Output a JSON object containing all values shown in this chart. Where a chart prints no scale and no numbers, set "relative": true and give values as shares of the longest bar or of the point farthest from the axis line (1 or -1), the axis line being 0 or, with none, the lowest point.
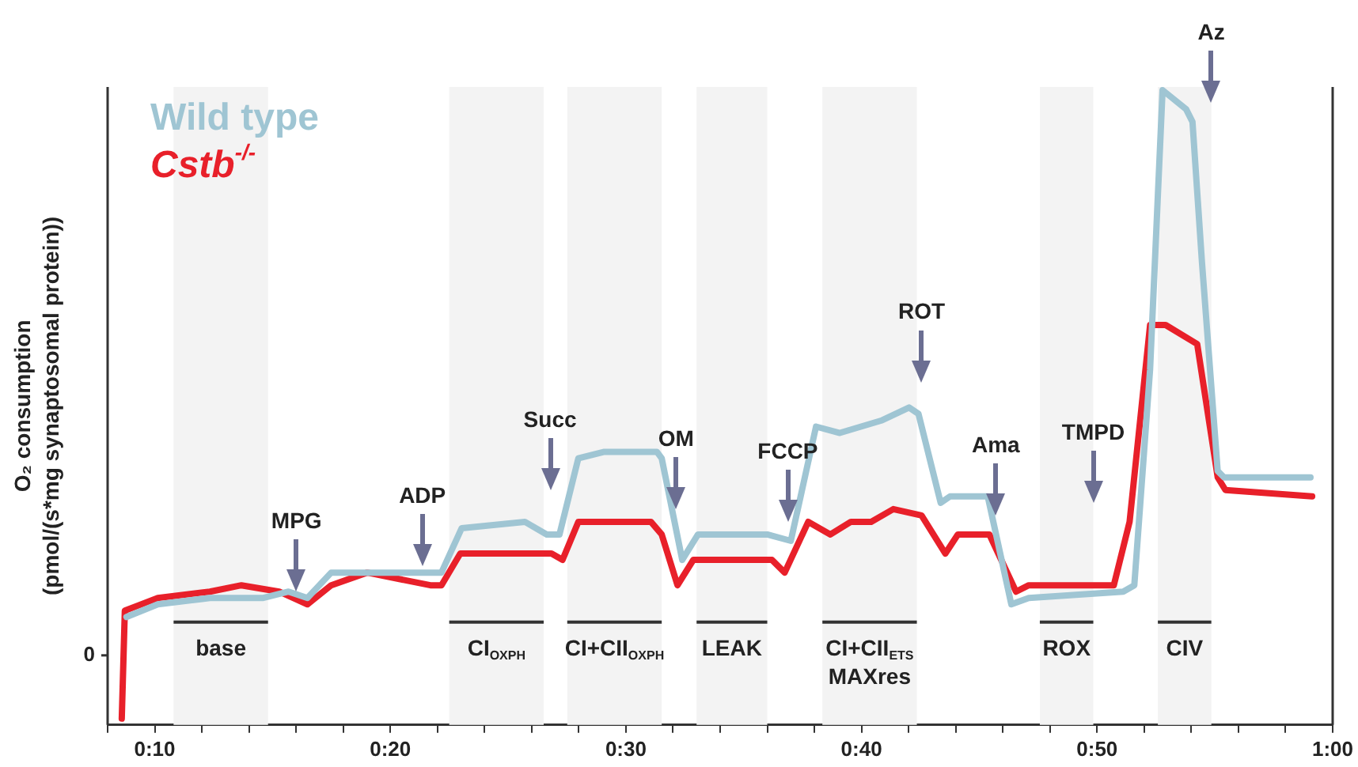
{
  "chart_data": {
    "type": "line",
    "relative": true,
    "ylabel": "O₂ consumption\n(pmol/(s*mg synaptosomal protein))",
    "legend": "top left",
    "marker": "none",
    "line_style": "solid",
    "grid": false,
    "xlim": [
      8,
      60
    ],
    "xticks": [
      {
        "value": 8,
        "label": null
      },
      {
        "value": 10,
        "label": "0:10"
      },
      {
        "value": 12,
        "label": null
      },
      {
        "value": 14,
        "label": null
      },
      {
        "value": 16,
        "label": null
      },
      {
        "value": 18,
        "label": null
      },
      {
        "value": 20,
        "label": "0:20"
      },
      {
        "value": 22,
        "label": null
      },
      {
        "value": 24,
        "label": null
      },
      {
        "value": 26,
        "label": null
      },
      {
        "value": 28,
        "label": null
      },
      {
        "value": 30,
        "label": "0:30"
      },
      {
        "value": 32,
        "label": null
      },
      {
        "value": 34,
        "label": null
      },
      {
        "value": 36,
        "label": null
      },
      {
        "value": 38,
        "label": null
      },
      {
        "value": 40,
        "label": "0:40"
      },
      {
        "value": 42,
        "label": null
      },
      {
        "value": 44,
        "label": null
      },
      {
        "value": 46,
        "label": null
      },
      {
        "value": 48,
        "label": null
      },
      {
        "value": 50,
        "label": "0:50"
      },
      {
        "value": 52,
        "label": null
      },
      {
        "value": 54,
        "label": null
      },
      {
        "value": 56,
        "label": null
      },
      {
        "value": 58,
        "label": null
      },
      {
        "value": 60,
        "label": "1:00"
      }
    ],
    "series": [
      {
        "name": "Wild type",
        "color": "#9fc5d3",
        "x": [
          8.8,
          10.13,
          12.34,
          14.61,
          15.68,
          16.48,
          17.49,
          19.02,
          22.17,
          23.03,
          25.71,
          26.64,
          27.18,
          27.98,
          29.05,
          31.32,
          31.52,
          32.39,
          33.06,
          36.0,
          37.0,
          38.07,
          39.08,
          40.88,
          42.02,
          42.42,
          43.36,
          43.76,
          45.36,
          46.36,
          47.1,
          51.11,
          51.58,
          52.25,
          52.78,
          53.78,
          54.05,
          54.45,
          55.12,
          55.39,
          59.06
        ],
        "values": [
          0.17,
          0.19,
          0.2,
          0.2,
          0.21,
          0.2,
          0.24,
          0.24,
          0.24,
          0.31,
          0.32,
          0.3,
          0.3,
          0.42,
          0.43,
          0.43,
          0.42,
          0.26,
          0.3,
          0.3,
          0.29,
          0.47,
          0.46,
          0.48,
          0.5,
          0.49,
          0.35,
          0.36,
          0.36,
          0.19,
          0.2,
          0.21,
          0.22,
          0.56,
          1.0,
          0.97,
          0.95,
          0.73,
          0.4,
          0.39,
          0.39
        ]
      },
      {
        "name": "Cstb$^{-/-}$",
        "color": "#e8202a",
        "x": [
          8.6,
          8.73,
          10.13,
          12.34,
          13.68,
          15.28,
          16.48,
          17.49,
          19.02,
          21.7,
          22.17,
          22.97,
          24.64,
          26.84,
          27.31,
          27.98,
          31.06,
          31.52,
          32.19,
          32.86,
          36.2,
          36.74,
          37.74,
          38.68,
          39.55,
          40.41,
          41.35,
          42.55,
          43.56,
          44.09,
          45.43,
          46.56,
          47.1,
          50.71,
          51.38,
          52.25,
          52.91,
          54.25,
          55.12,
          55.45,
          59.13
        ],
        "values": [
          0.01,
          0.18,
          0.2,
          0.21,
          0.22,
          0.21,
          0.19,
          0.22,
          0.24,
          0.22,
          0.22,
          0.27,
          0.27,
          0.27,
          0.26,
          0.32,
          0.32,
          0.3,
          0.22,
          0.26,
          0.26,
          0.24,
          0.32,
          0.3,
          0.32,
          0.32,
          0.34,
          0.33,
          0.27,
          0.3,
          0.3,
          0.21,
          0.22,
          0.22,
          0.32,
          0.63,
          0.63,
          0.6,
          0.39,
          0.37,
          0.36
        ]
      }
    ],
    "annotations": [
      "0",
      {
        "text": "MPG",
        "x": 16.02,
        "y": 0.21
      },
      {
        "text": "ADP",
        "x": 21.36,
        "y": 0.25
      },
      {
        "text": "Succ",
        "x": 26.78,
        "y": 0.37
      },
      {
        "text": "OM",
        "x": 32.13,
        "y": 0.34
      },
      {
        "text": "FCCP",
        "x": 36.87,
        "y": 0.32
      },
      {
        "text": "ROT",
        "x": 42.55,
        "y": 0.54
      },
      {
        "text": "Ama",
        "x": 45.7,
        "y": 0.33
      },
      {
        "text": "TMPD",
        "x": 49.84,
        "y": 0.35
      },
      {
        "text": "Az",
        "x": 54.85,
        "y": 0.98
      }
    ],
    "bands": [
      {
        "axis": "x",
        "from": 10.8,
        "to": 14.81,
        "label": "base",
        "color": "#f3f3f3"
      },
      {
        "axis": "x",
        "from": 22.5,
        "to": 26.51,
        "label": "CI$_{OXPH}$",
        "color": "#f3f3f3"
      },
      {
        "axis": "x",
        "from": 27.51,
        "to": 31.52,
        "label": "CI+CII$_{OXPH}$",
        "color": "#f3f3f3"
      },
      {
        "axis": "x",
        "from": 33.0,
        "to": 36.0,
        "label": "LEAK",
        "color": "#f3f3f3"
      },
      {
        "axis": "x",
        "from": 38.34,
        "to": 42.35,
        "label": "CI+CII$_{ETS}$\nMAXres",
        "color": "#f3f3f3"
      },
      {
        "axis": "x",
        "from": 47.57,
        "to": 49.84,
        "label": "ROX",
        "color": "#f3f3f3"
      },
      {
        "axis": "x",
        "from": 52.58,
        "to": 54.85,
        "label": "CIV",
        "color": "#f3f3f3"
      }
    ]
  }
}
